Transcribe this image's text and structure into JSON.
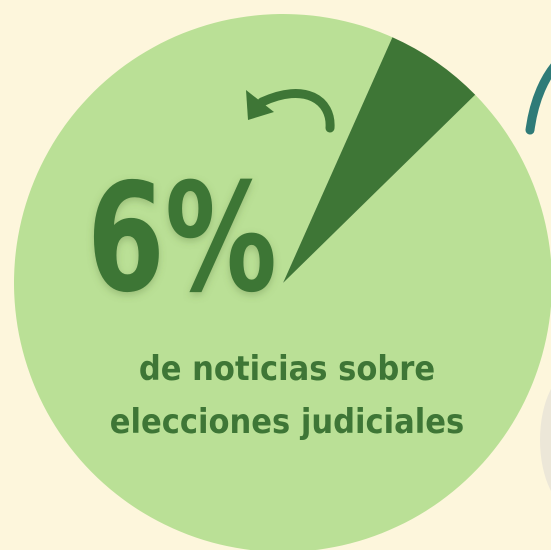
{
  "chart_data": {
    "type": "pie",
    "values": [
      6,
      94
    ],
    "value_labels": [
      "6%",
      null
    ],
    "colors": [
      "#3e7636",
      "#bae096"
    ],
    "start_angle": 24,
    "annotation": [
      "de noticias sobre",
      "elecciones judiciales"
    ]
  }
}
